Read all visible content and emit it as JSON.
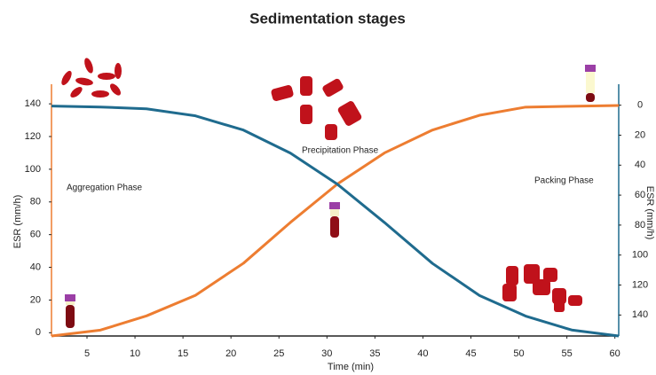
{
  "chart_data": {
    "type": "line",
    "title": "Sedimentation stages",
    "x_label": "Time (min)",
    "y_label": "ESR (mm/h)",
    "y2_label": "ESR (mm/h)",
    "annotations": [
      "Aggregation Phase",
      "Precipitation Phase",
      "Packing Phase"
    ],
    "x": [
      1.3,
      6.4,
      11.2,
      16.3,
      21.3,
      26.2,
      31.1,
      36,
      41,
      45.9,
      50.7,
      55.5,
      60.4
    ],
    "series": [
      {
        "color": "#ed7d31",
        "values": [
          -2,
          1.6,
          10.3,
          22.9,
          42.5,
          67.5,
          91,
          110,
          124,
          133,
          138,
          138.5,
          139
        ]
      },
      {
        "color": "#1f6b8e",
        "axis": "y2",
        "values": [
          0.6,
          1.2,
          2.4,
          7.1,
          16.6,
          32,
          52.8,
          78.3,
          105.6,
          127,
          140.7,
          150,
          154
        ]
      }
    ],
    "xlim": [
      1.3,
      60.4
    ],
    "xticks": [
      5,
      10,
      15,
      20,
      25,
      30,
      35,
      40,
      45,
      50,
      55,
      60
    ],
    "ylim": [
      -2,
      152
    ],
    "yticks": [
      0,
      20,
      40,
      60,
      80,
      100,
      120,
      140
    ],
    "y2lim": [
      154,
      -14
    ],
    "y2ticks": [
      0,
      20,
      40,
      60,
      80,
      100,
      120,
      140
    ]
  }
}
